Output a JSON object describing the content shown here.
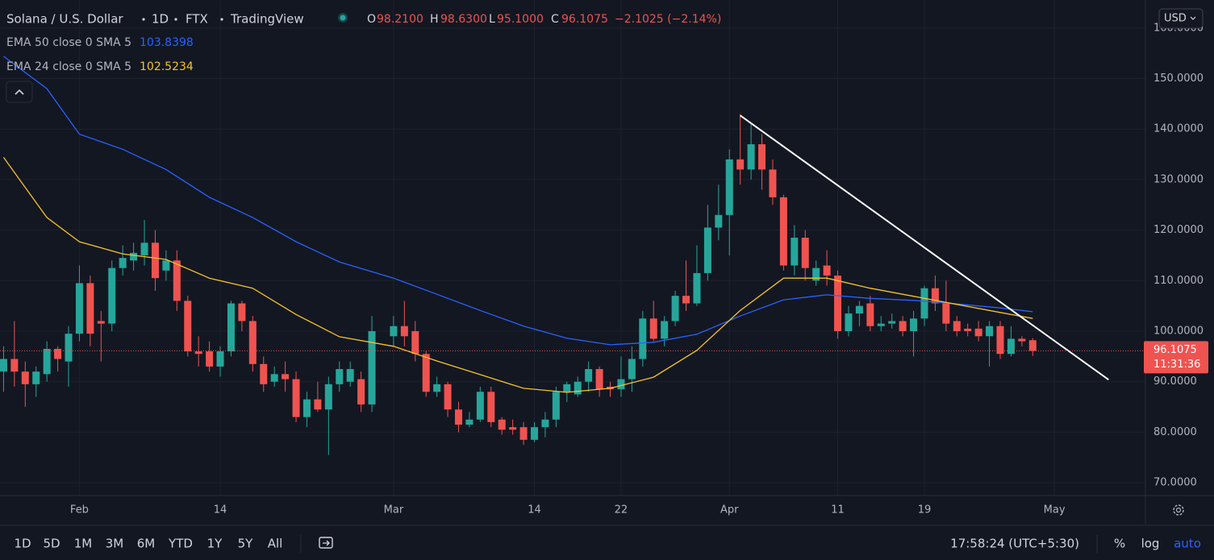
{
  "header": {
    "symbol": "Solana / U.S. Dollar",
    "interval": "1D",
    "exchange": "FTX",
    "source": "TradingView",
    "ohlc": [
      {
        "key": "O",
        "value": "98.2100"
      },
      {
        "key": "H",
        "value": "98.6300"
      },
      {
        "key": "L",
        "value": "95.1000"
      },
      {
        "key": "C",
        "value": "96.1075"
      }
    ],
    "change": "−2.1025 (−2.14%)"
  },
  "chart_data": {
    "type": "candlestick",
    "x": [
      "01-25",
      "01-26",
      "01-27",
      "01-28",
      "01-29",
      "01-30",
      "01-31",
      "02-01",
      "02-02",
      "02-03",
      "02-04",
      "02-05",
      "02-06",
      "02-07",
      "02-08",
      "02-09",
      "02-10",
      "02-11",
      "02-12",
      "02-13",
      "02-14",
      "02-15",
      "02-16",
      "02-17",
      "02-18",
      "02-19",
      "02-20",
      "02-21",
      "02-22",
      "02-23",
      "02-24",
      "02-25",
      "02-26",
      "02-27",
      "02-28",
      "03-01",
      "03-02",
      "03-03",
      "03-04",
      "03-05",
      "03-06",
      "03-07",
      "03-08",
      "03-09",
      "03-10",
      "03-11",
      "03-12",
      "03-13",
      "03-14",
      "03-15",
      "03-16",
      "03-17",
      "03-18",
      "03-19",
      "03-20",
      "03-21",
      "03-22",
      "03-23",
      "03-24",
      "03-25",
      "03-26",
      "03-27",
      "03-28",
      "03-29",
      "03-30",
      "03-31",
      "04-01",
      "04-02",
      "04-03",
      "04-04",
      "04-05",
      "04-06",
      "04-07",
      "04-08",
      "04-09",
      "04-10",
      "04-11",
      "04-12",
      "04-13",
      "04-14",
      "04-15",
      "04-16",
      "04-17",
      "04-18",
      "04-19",
      "04-20",
      "04-21",
      "04-22",
      "04-23",
      "04-24",
      "04-25",
      "04-26",
      "04-27",
      "04-28",
      "04-29"
    ],
    "open": [
      92,
      94.5,
      92,
      89.5,
      91.5,
      96.5,
      94,
      99.5,
      109.5,
      102,
      101.5,
      112.5,
      114,
      115,
      117.5,
      112,
      114,
      106,
      96,
      96,
      93,
      96,
      105.5,
      102,
      93.5,
      90,
      91.5,
      90.5,
      83,
      86.5,
      84.5,
      89.5,
      90,
      90.5,
      85.5,
      99,
      101,
      100,
      95.5,
      88,
      89.5,
      84.5,
      81.5,
      82.5,
      88,
      82.5,
      81,
      81,
      78.5,
      81,
      82.5,
      88,
      87.5,
      90,
      92.5,
      89,
      88.5,
      90.5,
      94.5,
      102.5,
      98.5,
      102,
      107,
      105.5,
      111.5,
      120.5,
      123,
      134,
      132,
      137,
      132,
      126.5,
      113,
      118.5,
      110,
      113,
      111,
      100,
      103.5,
      105.5,
      101,
      101.5,
      102,
      100,
      102.5,
      108.5,
      105.5,
      102,
      100.5,
      100.5,
      99,
      101,
      95.5,
      98.5,
      98.21
    ],
    "high": [
      97,
      102,
      94,
      93,
      98,
      97,
      101,
      113,
      111,
      104,
      114,
      117,
      117.5,
      122,
      120,
      116,
      116,
      107,
      99,
      98,
      97,
      106,
      106,
      103,
      95,
      93,
      94,
      92,
      88,
      90,
      91,
      94,
      94,
      92,
      103,
      103,
      106,
      102,
      96,
      91,
      90,
      86,
      84,
      89,
      89,
      83,
      82.5,
      82,
      82,
      84,
      89,
      90,
      91,
      94,
      93,
      90,
      95,
      97,
      104,
      106,
      103,
      108,
      114,
      117,
      125,
      129,
      136,
      143,
      141,
      139,
      134,
      127,
      121,
      120,
      114,
      116,
      112,
      105,
      106,
      107,
      103,
      103.5,
      103,
      104,
      109,
      111,
      110,
      103,
      101.5,
      102,
      102,
      102,
      101,
      99,
      98.63
    ],
    "low": [
      88,
      89,
      85,
      87,
      90,
      92,
      89,
      98,
      97,
      94,
      100,
      111,
      112,
      113,
      108,
      110,
      104,
      95,
      93,
      92,
      91,
      95,
      100,
      92,
      88,
      89,
      88,
      82,
      81,
      84,
      75.5,
      88,
      89,
      84,
      84,
      97,
      97,
      94,
      87,
      87,
      83,
      80,
      81,
      82,
      81,
      79.5,
      79.5,
      77.5,
      78,
      79,
      81,
      86,
      87,
      88,
      87,
      87,
      87,
      88,
      93,
      98,
      97,
      101,
      104,
      105,
      110,
      118,
      115,
      129,
      130,
      128,
      125,
      112,
      111,
      110,
      109,
      109,
      98.5,
      99,
      101,
      100,
      100,
      100.5,
      99,
      95,
      101,
      104,
      100,
      99,
      99,
      98,
      93,
      94.5,
      95,
      97,
      95.1
    ],
    "close": [
      94.5,
      92,
      89.5,
      92,
      96.5,
      94.5,
      99.5,
      109.5,
      99.5,
      101.5,
      112.5,
      114.5,
      115.5,
      117.5,
      110.5,
      114,
      106,
      96,
      95.5,
      93,
      96,
      105.5,
      102,
      93.5,
      89.5,
      91.5,
      90.5,
      83,
      86.5,
      84.5,
      89.5,
      92.5,
      92.5,
      85.5,
      100,
      101,
      99,
      95.5,
      88,
      89.5,
      84.5,
      81.5,
      82.5,
      88,
      82,
      80.5,
      80.5,
      78.5,
      81,
      82.5,
      88,
      89.5,
      90,
      92.5,
      88.5,
      88.5,
      90.5,
      94.5,
      102.5,
      98.5,
      102,
      107,
      105.5,
      111.5,
      120.5,
      123,
      134,
      132,
      137,
      132,
      126.5,
      113,
      118.5,
      112.5,
      112.5,
      111,
      100,
      103.5,
      105,
      101,
      101.5,
      102,
      100,
      102.5,
      108.5,
      105.5,
      101.5,
      100,
      100,
      99,
      101,
      95.5,
      98.5,
      98,
      96.1075
    ],
    "up_color": "#26a69a",
    "down_color": "#ef5350",
    "series": [
      {
        "name": "EMA 50 close 0 SMA 5",
        "color": "#2962ff",
        "x": [
          "01-25",
          "01-29",
          "02-01",
          "02-05",
          "02-09",
          "02-13",
          "02-17",
          "02-21",
          "02-25",
          "03-01",
          "03-05",
          "03-09",
          "03-13",
          "03-17",
          "03-21",
          "03-25",
          "03-29",
          "04-02",
          "04-06",
          "04-10",
          "04-14",
          "04-18",
          "04-22",
          "04-26",
          "04-29"
        ],
        "values": [
          154.4,
          148,
          139,
          136,
          132,
          126.5,
          122.5,
          117.7,
          113.7,
          110.5,
          107.3,
          104.1,
          101,
          98.6,
          97.3,
          97.8,
          99.4,
          103,
          106.2,
          107.2,
          106.5,
          106.1,
          105.4,
          104.6,
          103.8398
        ]
      },
      {
        "name": "EMA 24 close 0 SMA 5",
        "color": "#f7c325",
        "x": [
          "01-25",
          "01-29",
          "02-01",
          "02-05",
          "02-09",
          "02-13",
          "02-17",
          "02-21",
          "02-25",
          "03-01",
          "03-05",
          "03-09",
          "03-13",
          "03-17",
          "03-21",
          "03-25",
          "03-29",
          "04-02",
          "04-06",
          "04-10",
          "04-14",
          "04-18",
          "04-22",
          "04-26",
          "04-29"
        ],
        "values": [
          134.4,
          122.5,
          117.7,
          115.3,
          114.2,
          110.5,
          108.5,
          103.3,
          98.9,
          97,
          94.1,
          91.4,
          88.7,
          87.9,
          88.7,
          90.9,
          96.2,
          104.1,
          110.5,
          110.5,
          108.5,
          106.9,
          105.3,
          103.7,
          102.5234
        ]
      }
    ],
    "trendline": {
      "x": [
        "04-02",
        "05-06"
      ],
      "values": [
        142.7,
        90.4
      ],
      "color": "#ffffff"
    },
    "xlim": [
      "01-24",
      "05-10"
    ],
    "ylim": [
      66.67,
      165.55
    ],
    "yticks": [
      {
        "value": 70,
        "label": "70.0000"
      },
      {
        "value": 80,
        "label": "80.0000"
      },
      {
        "value": 90,
        "label": "90.0000"
      },
      {
        "value": 100,
        "label": "100.0000"
      },
      {
        "value": 110,
        "label": "110.0000"
      },
      {
        "value": 120,
        "label": "120.0000"
      },
      {
        "value": 130,
        "label": "130.0000"
      },
      {
        "value": 140,
        "label": "140.0000"
      },
      {
        "value": 150,
        "label": "150.0000"
      },
      {
        "value": 160,
        "label": "160.0000"
      }
    ],
    "xticks": [
      {
        "value": "02-01",
        "label": "Feb"
      },
      {
        "value": "02-14",
        "label": "14"
      },
      {
        "value": "03-01",
        "label": "Mar"
      },
      {
        "value": "03-14",
        "label": "14"
      },
      {
        "value": "03-22",
        "label": "22"
      },
      {
        "value": "04-01",
        "label": "Apr"
      },
      {
        "value": "04-11",
        "label": "11"
      },
      {
        "value": "04-19",
        "label": "19"
      },
      {
        "value": "05-01",
        "label": "May"
      }
    ],
    "grid": true,
    "countdown": "11:31:36",
    "currency": "USD"
  },
  "toolbar": {
    "ranges": [
      "1D",
      "5D",
      "1M",
      "3M",
      "6M",
      "YTD",
      "1Y",
      "5Y",
      "All"
    ],
    "clock": "17:58:24 (UTC+5:30)",
    "options": [
      "%",
      "log",
      "auto"
    ]
  }
}
